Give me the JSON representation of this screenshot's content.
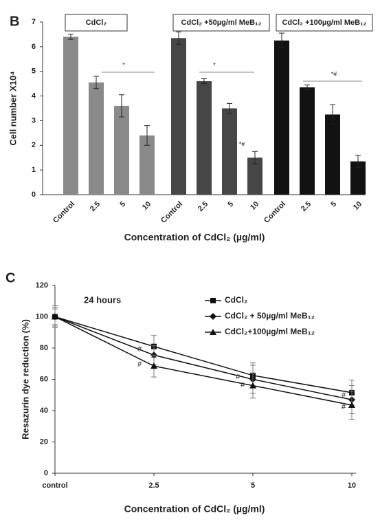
{
  "chart_data": [
    {
      "panel": "B",
      "type": "bar",
      "ylabel": "Cell number X10⁴",
      "xlabel": "Concentration of CdCl₂ (µg/ml)",
      "categories": [
        "Control",
        "2.5",
        "5",
        "10"
      ],
      "ylim": [
        0,
        7
      ],
      "yticks": [
        0,
        1,
        2,
        3,
        4,
        5,
        6,
        7
      ],
      "series": [
        {
          "name": "CdCl₂",
          "color": "#8a8a8a",
          "values": [
            6.4,
            4.55,
            3.6,
            2.4
          ],
          "errors": [
            0.1,
            0.25,
            0.45,
            0.4
          ]
        },
        {
          "name": "CdCl₂ +50µg/ml MeB₁₂",
          "color": "#464646",
          "values": [
            6.35,
            4.6,
            3.5,
            1.5
          ],
          "errors": [
            0.25,
            0.1,
            0.2,
            0.25
          ]
        },
        {
          "name": "CdCl₂ +100µg/ml MeB₁₂",
          "color": "#121212",
          "values": [
            6.25,
            4.35,
            3.25,
            1.35
          ],
          "errors": [
            0.3,
            0.1,
            0.4,
            0.25
          ]
        }
      ],
      "annotations": [
        "*",
        "*",
        "*#",
        "*#"
      ]
    },
    {
      "panel": "C",
      "type": "line",
      "ylabel": "Resazurin dye reduction (%)",
      "xlabel": "Concentration of CdCl₂ (µg/ml)",
      "categories": [
        "control",
        "2.5",
        "5",
        "10"
      ],
      "ylim": [
        0,
        120
      ],
      "yticks": [
        0,
        20,
        40,
        60,
        80,
        100,
        120
      ],
      "series": [
        {
          "name": "CdCl₂",
          "color": "#111111",
          "marker": "square",
          "values": [
            100,
            81,
            62.5,
            51.5
          ],
          "errors": [
            6,
            7,
            8,
            8
          ]
        },
        {
          "name": "CdCl₂ + 50µg/ml MeB₁₂",
          "color": "#111111",
          "marker": "diamond",
          "values": [
            100,
            75.5,
            60,
            47
          ],
          "errors": [
            5,
            6,
            9,
            9
          ]
        },
        {
          "name": "CdCl₂+100µg/ml MeB₁₂",
          "color": "#111111",
          "marker": "triangle",
          "values": [
            100,
            68.5,
            56,
            43.5
          ],
          "errors": [
            7,
            7,
            8,
            9
          ]
        }
      ],
      "annotations": [
        "24 hours",
        "#",
        "#",
        "#",
        "#",
        "#",
        "#"
      ]
    }
  ]
}
